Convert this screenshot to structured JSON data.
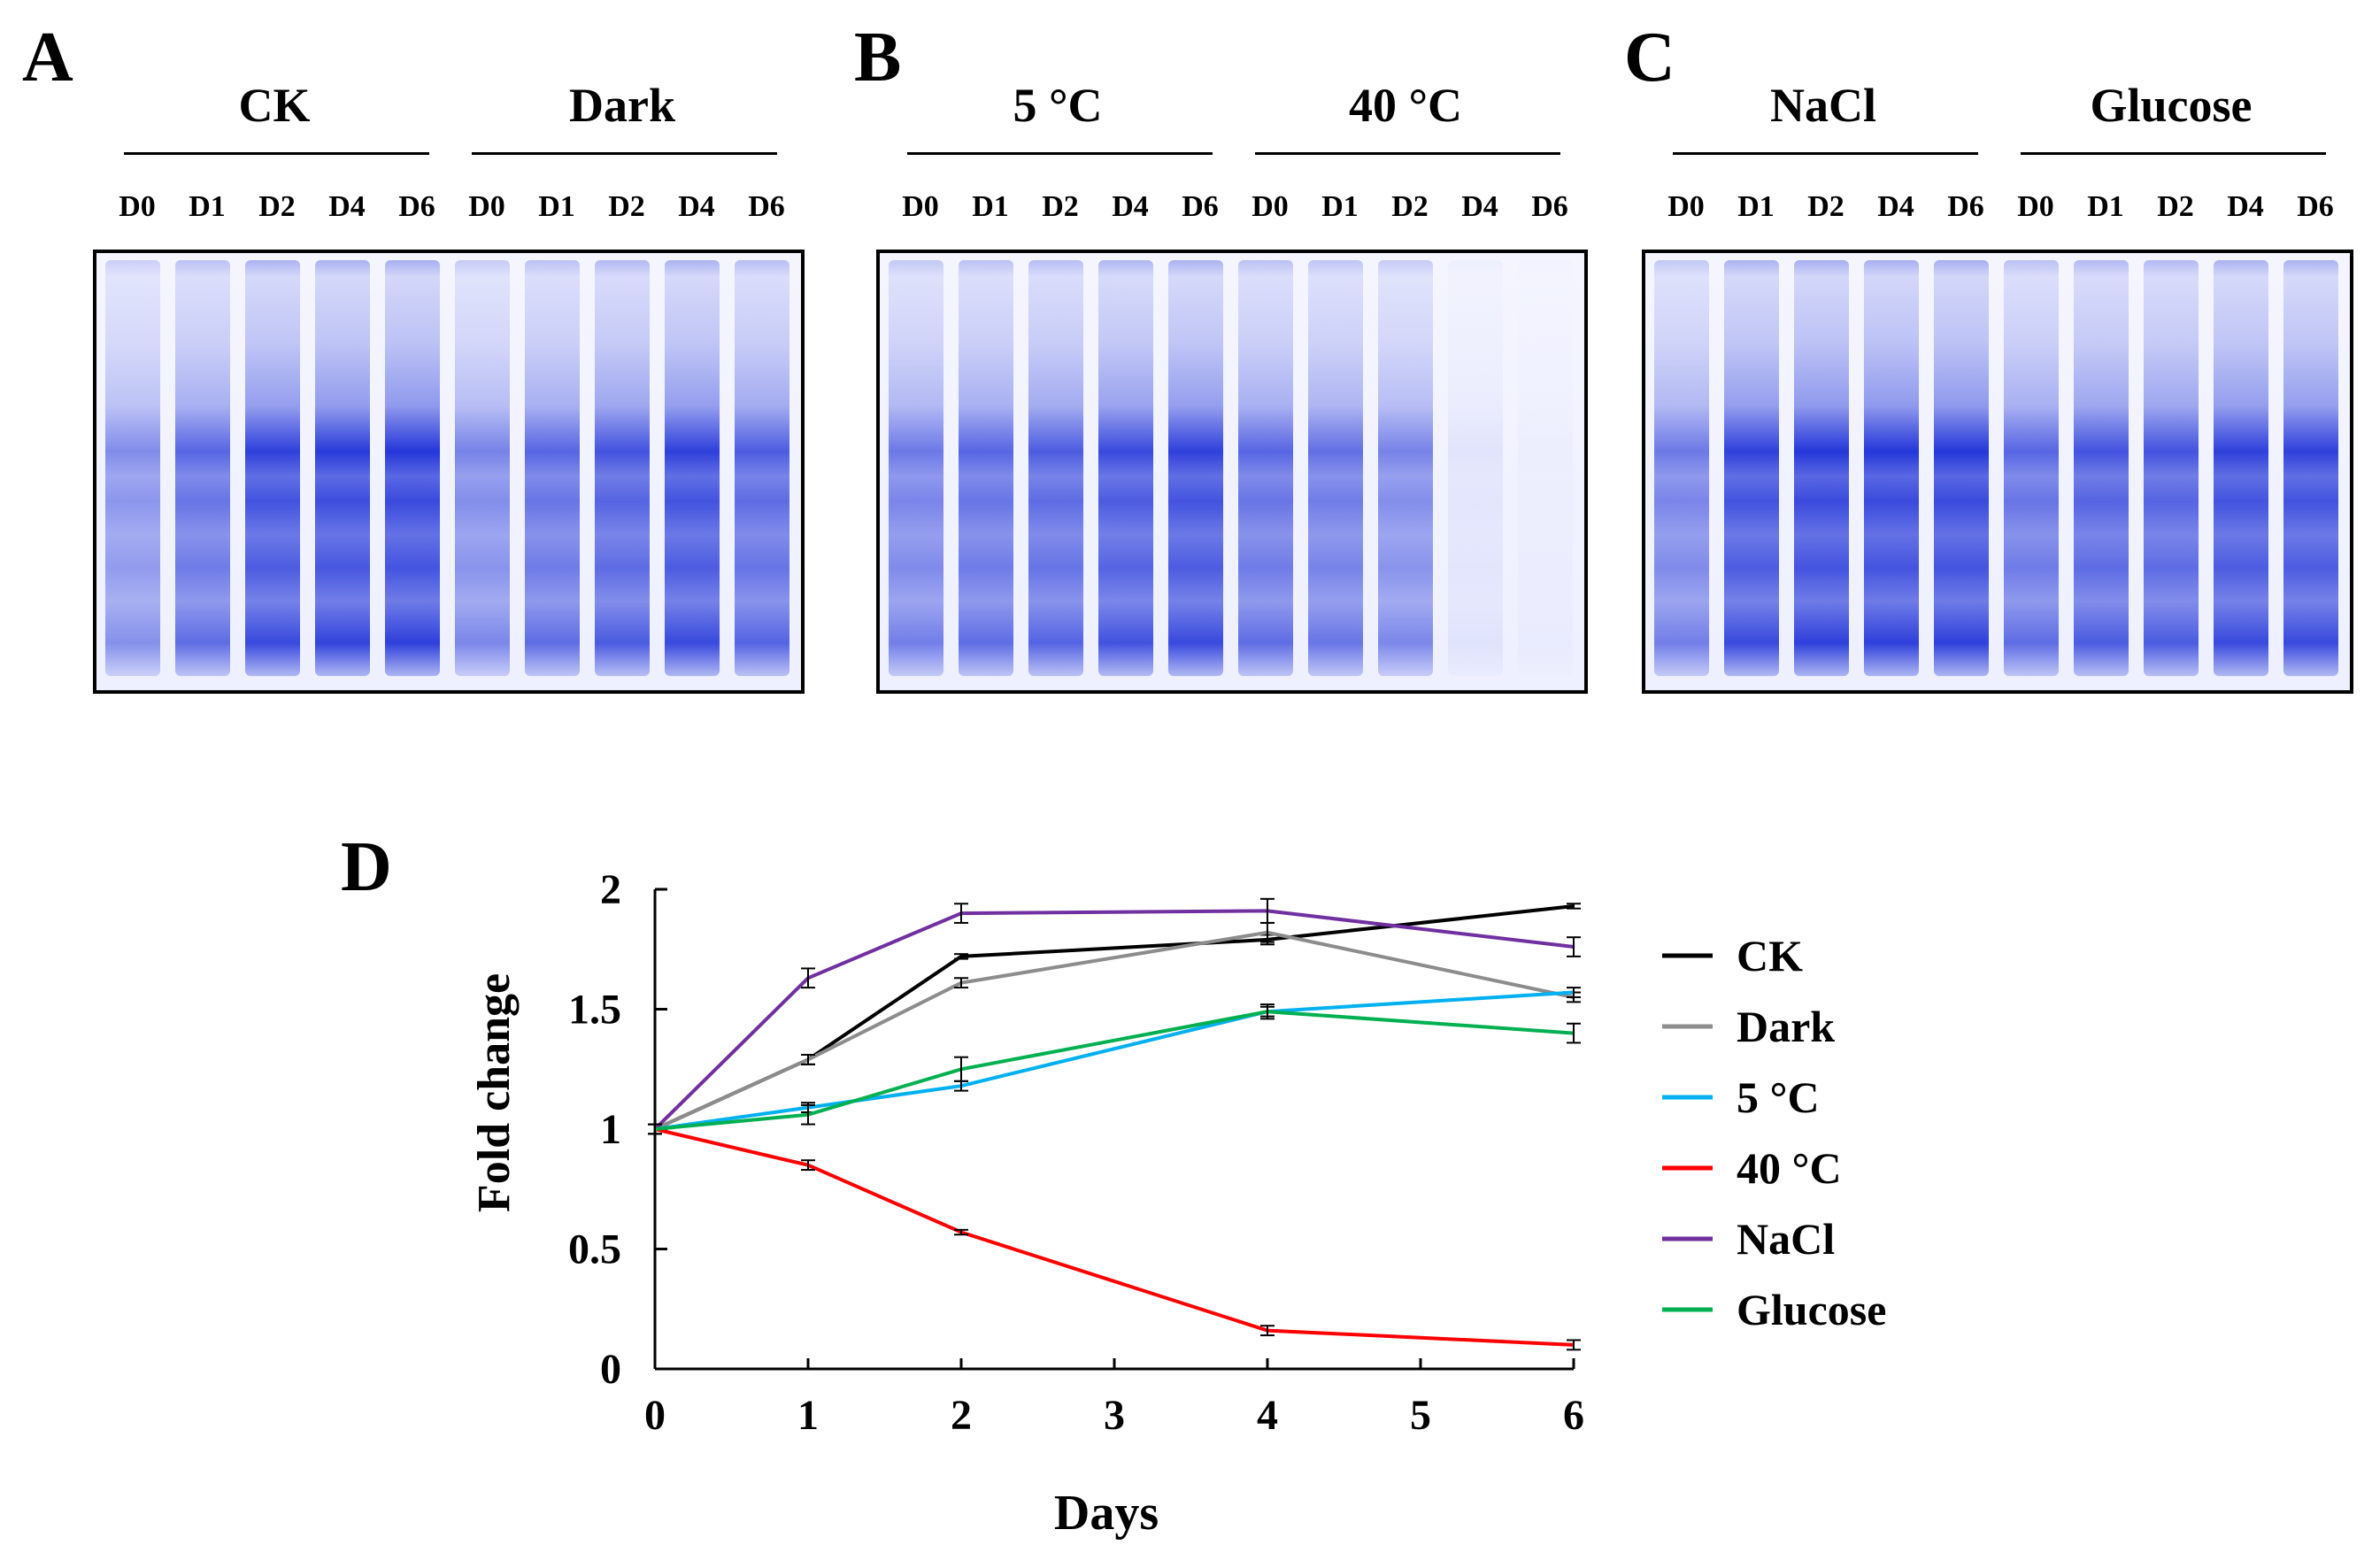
{
  "gels": [
    {
      "letter": "A",
      "groups": [
        {
          "title": "CK",
          "lanes": [
            "D0",
            "D1",
            "D2",
            "D4",
            "D6"
          ],
          "intensity": [
            0.55,
            0.75,
            0.95,
            0.98,
            1.0
          ]
        },
        {
          "title": "Dark",
          "lanes": [
            "D0",
            "D1",
            "D2",
            "D4",
            "D6"
          ],
          "intensity": [
            0.6,
            0.75,
            0.85,
            0.95,
            0.8
          ]
        }
      ]
    },
    {
      "letter": "B",
      "groups": [
        {
          "title": "5 °C",
          "lanes": [
            "D0",
            "D1",
            "D2",
            "D4",
            "D6"
          ],
          "intensity": [
            0.65,
            0.75,
            0.8,
            0.9,
            0.95
          ]
        },
        {
          "title": "40 °C",
          "lanes": [
            "D0",
            "D1",
            "D2",
            "D4",
            "D6"
          ],
          "intensity": [
            0.75,
            0.7,
            0.6,
            0.08,
            0.02
          ]
        }
      ]
    },
    {
      "letter": "C",
      "groups": [
        {
          "title": "NaCl",
          "lanes": [
            "D0",
            "D1",
            "D2",
            "D4",
            "D6"
          ],
          "intensity": [
            0.65,
            0.95,
            1.0,
            1.0,
            1.0
          ]
        },
        {
          "title": "Glucose",
          "lanes": [
            "D0",
            "D1",
            "D2",
            "D4",
            "D6"
          ],
          "intensity": [
            0.75,
            0.85,
            0.85,
            0.95,
            0.95
          ]
        }
      ]
    }
  ],
  "chart_panel_letter": "D",
  "chart_data": {
    "type": "line",
    "xlabel": "Days",
    "ylabel": "Fold change",
    "x": [
      0,
      1,
      2,
      4,
      6
    ],
    "xticks": [
      "0",
      "1",
      "2",
      "3",
      "4",
      "5",
      "6"
    ],
    "xlim": [
      0,
      6
    ],
    "yticks": [
      "0",
      "0.5",
      "1",
      "1.5",
      "2"
    ],
    "ylim": [
      0,
      2
    ],
    "series": [
      {
        "name": "CK",
        "color": "#000000",
        "values": [
          1.0,
          1.29,
          1.72,
          1.79,
          1.93
        ],
        "errors": [
          0.02,
          0.02,
          0.01,
          0.02,
          0.01
        ]
      },
      {
        "name": "Dark",
        "color": "#8c8c8c",
        "values": [
          1.0,
          1.29,
          1.61,
          1.82,
          1.55
        ],
        "errors": [
          0.02,
          0.02,
          0.02,
          0.04,
          0.02
        ]
      },
      {
        "name": "5 °C",
        "color": "#00b0f0",
        "values": [
          1.0,
          1.09,
          1.18,
          1.49,
          1.57
        ],
        "errors": [
          0.02,
          0.02,
          0.02,
          0.02,
          0.02
        ]
      },
      {
        "name": "40 °C",
        "color": "#ff0000",
        "values": [
          1.0,
          0.85,
          0.57,
          0.16,
          0.1
        ],
        "errors": [
          0.02,
          0.02,
          0.01,
          0.02,
          0.02
        ]
      },
      {
        "name": "NaCl",
        "color": "#7030a0",
        "values": [
          1.0,
          1.63,
          1.9,
          1.91,
          1.76
        ],
        "errors": [
          0.02,
          0.04,
          0.04,
          0.05,
          0.04
        ]
      },
      {
        "name": "Glucose",
        "color": "#00b050",
        "values": [
          1.0,
          1.06,
          1.25,
          1.49,
          1.4
        ],
        "errors": [
          0.02,
          0.04,
          0.05,
          0.03,
          0.04
        ]
      }
    ],
    "legend_position": "right"
  }
}
